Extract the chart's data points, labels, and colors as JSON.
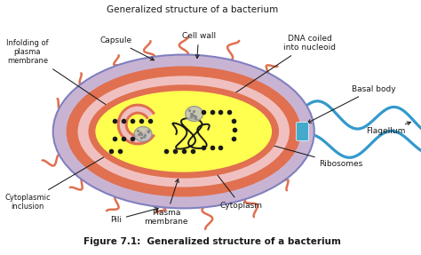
{
  "title_top": "Generalized structure of a bacterium",
  "title_bottom": "Figure 7.1:  Generalized structure of a bacterium",
  "bg_color": "#ffffff",
  "colors": {
    "capsule_fill": "#c8b4d2",
    "capsule_edge": "#8080c0",
    "cell_wall_fill": "#e07050",
    "pink_layer_fill": "#f0c0c0",
    "cytoplasm_fill": "#ffff50",
    "dna_color": "#1a1a1a",
    "ribosome_color": "#1a1a1a",
    "flagellum_color": "#3399cc",
    "basal_body_color": "#44aacc",
    "nucleoid_gray": "#b0b0b0",
    "annotation_color": "#1a1a1a"
  },
  "labels": {
    "infolding": "Infolding of\nplasma\nmembrane",
    "capsule": "Capsule",
    "cell_wall": "Cell wall",
    "dna": "DNA coiled\ninto nucleoid",
    "basal_body": "Basal body",
    "flagellum": "Flagellum",
    "ribosomes": "Ribosomes",
    "cytoplasm": "Cytoplasm",
    "plasma_membrane": "Plasma\nmembrane",
    "pili": "Pili",
    "cytoplasmic_inclusion": "Cytoplasmic\ninclusion"
  }
}
